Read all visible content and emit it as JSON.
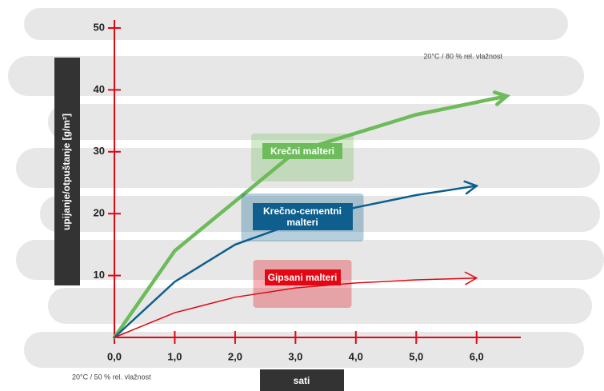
{
  "chart_data": {
    "type": "line",
    "y_label": "upijanje/otpuštanje [g/m²]",
    "x_label": "sati",
    "annotations": [
      "20°C / 80 % rel. vlažnost",
      "20°C / 50 % rel. vlažnost"
    ],
    "x": [
      0,
      1,
      2,
      3,
      4,
      5,
      6,
      6.5
    ],
    "series": [
      {
        "name": "Krečni malteri",
        "color": "#6dbb5a",
        "values": [
          0,
          14,
          22,
          30,
          33,
          36,
          38,
          39
        ]
      },
      {
        "name": "Krečno-cementni malteri",
        "color": "#0e5f8e",
        "values": [
          0,
          9,
          15,
          18.5,
          21,
          23,
          24.5,
          null
        ]
      },
      {
        "name": "Gipsani malteri",
        "color": "#e30613",
        "values": [
          0,
          4,
          6.5,
          8,
          8.8,
          9.3,
          9.6,
          null
        ]
      }
    ],
    "xlim": [
      0,
      6.6
    ],
    "ylim": [
      0,
      50
    ],
    "xticks": [
      {
        "value": 0,
        "label": "0,0"
      },
      {
        "value": 1,
        "label": "1,0"
      },
      {
        "value": 2,
        "label": "2,0"
      },
      {
        "value": 3,
        "label": "3,0"
      },
      {
        "value": 4,
        "label": "4,0"
      },
      {
        "value": 5,
        "label": "5,0"
      },
      {
        "value": 6,
        "label": "6,0"
      }
    ],
    "yticks": [
      10,
      20,
      30,
      40,
      50
    ],
    "axis_color": "#e30613"
  }
}
